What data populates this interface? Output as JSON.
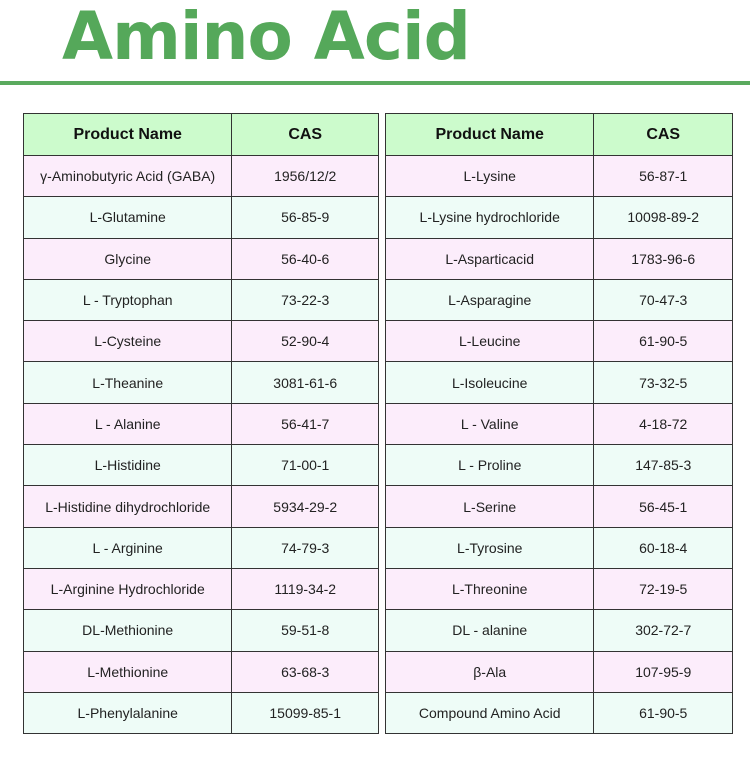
{
  "title": "Amino Acid",
  "colors": {
    "title": "#55a85a",
    "header_bg": "#ccfbcc",
    "row_pink": "#fcedfb",
    "row_mint": "#eefcf7"
  },
  "headers": {
    "name": "Product Name",
    "cas": "CAS"
  },
  "left_table": [
    {
      "name": "γ-Aminobutyric Acid (GABA)",
      "cas": "1956/12/2"
    },
    {
      "name": "L-Glutamine",
      "cas": "56-85-9"
    },
    {
      "name": "Glycine",
      "cas": "56-40-6"
    },
    {
      "name": "L - Tryptophan",
      "cas": "73-22-3"
    },
    {
      "name": "L-Cysteine",
      "cas": "52-90-4"
    },
    {
      "name": "L-Theanine",
      "cas": "3081-61-6"
    },
    {
      "name": "L - Alanine",
      "cas": "56-41-7"
    },
    {
      "name": "L-Histidine",
      "cas": "71-00-1"
    },
    {
      "name": "L-Histidine dihydrochloride",
      "cas": "5934-29-2"
    },
    {
      "name": "L - Arginine",
      "cas": "74-79-3"
    },
    {
      "name": "L-Arginine Hydrochloride",
      "cas": "1119-34-2"
    },
    {
      "name": "DL-Methionine",
      "cas": "59-51-8"
    },
    {
      "name": "L-Methionine",
      "cas": "63-68-3"
    },
    {
      "name": "L-Phenylalanine",
      "cas": "15099-85-1"
    }
  ],
  "right_table": [
    {
      "name": "L-Lysine",
      "cas": "56-87-1"
    },
    {
      "name": "L-Lysine hydrochloride",
      "cas": "10098-89-2"
    },
    {
      "name": "L-Asparticacid",
      "cas": "1783-96-6"
    },
    {
      "name": "L-Asparagine",
      "cas": "70-47-3"
    },
    {
      "name": "L-Leucine",
      "cas": "61-90-5"
    },
    {
      "name": "L-Isoleucine",
      "cas": "73-32-5"
    },
    {
      "name": "L - Valine",
      "cas": "4-18-72"
    },
    {
      "name": "L - Proline",
      "cas": "147-85-3"
    },
    {
      "name": "L-Serine",
      "cas": "56-45-1"
    },
    {
      "name": "L-Tyrosine",
      "cas": "60-18-4"
    },
    {
      "name": "L-Threonine",
      "cas": "72-19-5"
    },
    {
      "name": "DL - alanine",
      "cas": "302-72-7"
    },
    {
      "name": "β-Ala",
      "cas": "107-95-9"
    },
    {
      "name": "Compound Amino Acid",
      "cas": "61-90-5"
    }
  ]
}
